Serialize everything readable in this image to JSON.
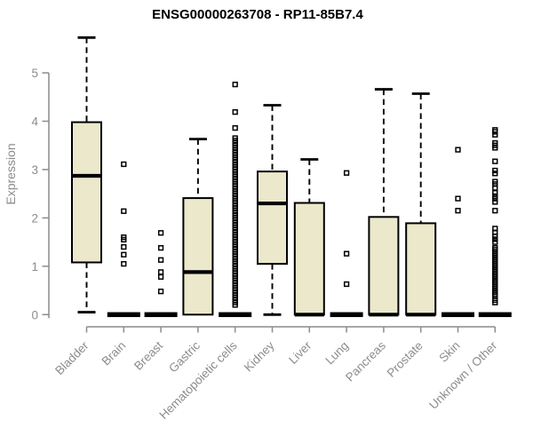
{
  "chart_data": {
    "type": "boxplot",
    "title": "ENSG00000263708 - RP11-85B7.4",
    "ylabel": "Expression",
    "ylim": [
      0,
      5
    ],
    "yticks": [
      0,
      1,
      2,
      3,
      4,
      5
    ],
    "grid": false,
    "legend": "none",
    "categories": [
      "Bladder",
      "Brain",
      "Breast",
      "Gastric",
      "Hematopoietic cells",
      "Kidney",
      "Liver",
      "Lung",
      "Pancreas",
      "Prostate",
      "Skin",
      "Unknown / Other"
    ],
    "boxes": [
      {
        "name": "Bladder",
        "whisker_low": 0.05,
        "q1": 1.08,
        "median": 2.87,
        "q3": 3.98,
        "whisker_high": 5.73,
        "outliers": []
      },
      {
        "name": "Brain",
        "whisker_low": 0,
        "q1": 0,
        "median": 0,
        "q3": 0,
        "whisker_high": 0,
        "outliers": [
          3.11,
          2.14,
          1.6,
          1.55,
          1.4,
          1.24,
          1.05
        ]
      },
      {
        "name": "Breast",
        "whisker_low": 0,
        "q1": 0,
        "median": 0,
        "q3": 0,
        "whisker_high": 0,
        "outliers": [
          1.69,
          1.38,
          1.13,
          0.88,
          0.78,
          0.48
        ]
      },
      {
        "name": "Gastric",
        "whisker_low": 0,
        "q1": 0,
        "median": 0.88,
        "q3": 2.41,
        "whisker_high": 3.63,
        "outliers": []
      },
      {
        "name": "Hematopoietic cells",
        "whisker_low": 0,
        "q1": 0,
        "median": 0,
        "q3": 0,
        "whisker_high": 0,
        "outliers": [
          4.76,
          4.19,
          3.86,
          3.65,
          3.6,
          3.55,
          3.5,
          3.45,
          3.4,
          3.35,
          3.3,
          3.25,
          3.2,
          3.15,
          3.1,
          3.05,
          3.0,
          2.95,
          2.9,
          2.85,
          2.8,
          2.75,
          2.7,
          2.65,
          2.6,
          2.55,
          2.5,
          2.45,
          2.4,
          2.35,
          2.3,
          2.25,
          2.2,
          2.15,
          2.1,
          2.05,
          2.0,
          1.95,
          1.9,
          1.85,
          1.8,
          1.75,
          1.7,
          1.65,
          1.6,
          1.55,
          1.5,
          1.45,
          1.4,
          1.35,
          1.3,
          1.25,
          1.2,
          1.15,
          1.1,
          1.05,
          1.0,
          0.95,
          0.9,
          0.85,
          0.8,
          0.75,
          0.7,
          0.65,
          0.6,
          0.55,
          0.5,
          0.45,
          0.4,
          0.35,
          0.3,
          0.25,
          0.2
        ]
      },
      {
        "name": "Kidney",
        "whisker_low": 0,
        "q1": 1.05,
        "median": 2.3,
        "q3": 2.96,
        "whisker_high": 4.33,
        "outliers": []
      },
      {
        "name": "Liver",
        "whisker_low": 0,
        "q1": 0,
        "median": 0,
        "q3": 2.31,
        "whisker_high": 3.21,
        "outliers": []
      },
      {
        "name": "Lung",
        "whisker_low": 0,
        "q1": 0,
        "median": 0,
        "q3": 0,
        "whisker_high": 0,
        "outliers": [
          2.93,
          1.26,
          0.63
        ]
      },
      {
        "name": "Pancreas",
        "whisker_low": 0,
        "q1": 0,
        "median": 0,
        "q3": 2.02,
        "whisker_high": 4.66,
        "outliers": []
      },
      {
        "name": "Prostate",
        "whisker_low": 0,
        "q1": 0,
        "median": 0,
        "q3": 1.89,
        "whisker_high": 4.57,
        "outliers": []
      },
      {
        "name": "Skin",
        "whisker_low": 0,
        "q1": 0,
        "median": 0,
        "q3": 0,
        "whisker_high": 0,
        "outliers": [
          3.41,
          2.4,
          2.15
        ]
      },
      {
        "name": "Unknown / Other",
        "whisker_low": 0,
        "q1": 0,
        "median": 0,
        "q3": 0,
        "whisker_high": 0,
        "outliers": [
          3.82,
          3.78,
          3.72,
          3.55,
          3.5,
          3.45,
          3.17,
          2.98,
          2.92,
          2.75,
          2.7,
          2.62,
          2.52,
          2.45,
          2.4,
          2.33,
          2.15,
          1.78,
          1.7,
          1.62,
          1.56,
          1.5,
          1.38,
          1.34,
          1.3,
          1.26,
          1.22,
          1.18,
          1.14,
          1.1,
          1.06,
          1.02,
          0.98,
          0.94,
          0.9,
          0.86,
          0.82,
          0.78,
          0.74,
          0.7,
          0.66,
          0.62,
          0.58,
          0.54,
          0.5,
          0.46,
          0.42,
          0.38,
          0.3,
          0.25
        ]
      }
    ],
    "colors": {
      "box_fill": "#ECE8CC",
      "box_border": "#000000",
      "median": "#000000",
      "whisker": "#000000",
      "outlier": "#000000",
      "axis": "#8c8c8c",
      "tick_label": "#8c8c8c",
      "title": "#000000",
      "background": "#FFFFFF"
    }
  }
}
